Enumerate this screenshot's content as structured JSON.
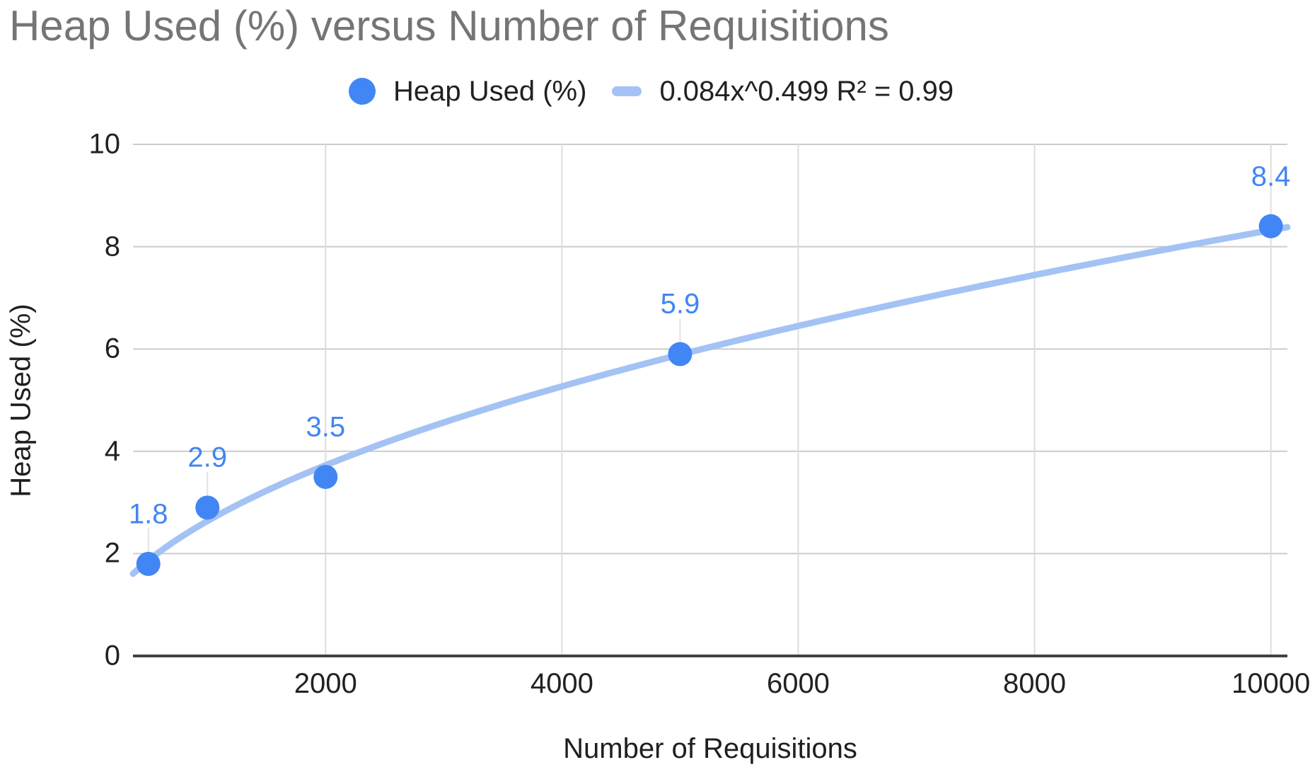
{
  "title": "Heap Used (%) versus Number of Requisitions",
  "legend": {
    "series_label": "Heap Used (%)",
    "trendline_label": "0.084x^0.499 R² = 0.99"
  },
  "axes": {
    "x_title": "Number of Requisitions",
    "y_title": "Heap Used (%)",
    "x_ticks": [
      2000,
      4000,
      6000,
      8000,
      10000
    ],
    "y_ticks": [
      0,
      2,
      4,
      6,
      8,
      10
    ]
  },
  "colors": {
    "series": "#4285f4",
    "trendline": "#a4c2f4",
    "data_label": "#4285f4",
    "title_text": "#757575",
    "legend_text": "#212121",
    "tick_text": "#212121",
    "gridline_horizontal": "#cccccc",
    "gridline_vertical": "#dddddd",
    "leader_line": "#e2e2e2",
    "axis_line": "#424242"
  },
  "chart_data": {
    "type": "scatter",
    "title": "Heap Used (%) versus Number of Requisitions",
    "xlabel": "Number of Requisitions",
    "ylabel": "Heap Used (%)",
    "series": [
      {
        "name": "Heap Used (%)",
        "points": [
          {
            "x": 500,
            "y": 1.8,
            "label": "1.8"
          },
          {
            "x": 1000,
            "y": 2.9,
            "label": "2.9"
          },
          {
            "x": 2000,
            "y": 3.5,
            "label": "3.5"
          },
          {
            "x": 5000,
            "y": 5.9,
            "label": "5.9"
          },
          {
            "x": 10000,
            "y": 8.4,
            "label": "8.4"
          }
        ]
      }
    ],
    "trendline": {
      "type": "power",
      "coefficient": 0.084,
      "exponent": 0.499,
      "r_squared": 0.99,
      "equation": "0.084x^0.499 R² = 0.99"
    },
    "xlim": [
      370,
      10140
    ],
    "ylim": [
      0,
      10
    ],
    "grid": true,
    "legend_position": "top",
    "data_labels": true
  }
}
